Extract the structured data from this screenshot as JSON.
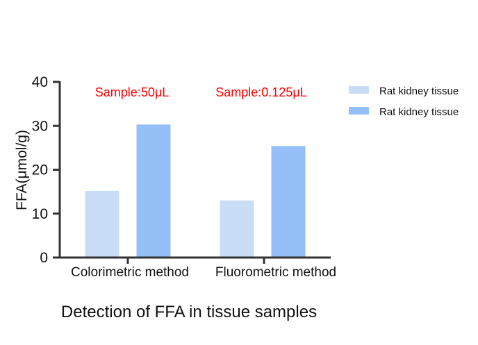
{
  "chart_data": {
    "type": "bar",
    "title": "Detection of FFA in tissue samples",
    "ylabel": "FFA(μmol/g)",
    "xlabel": "",
    "ylim": [
      0,
      40
    ],
    "yticks": [
      0,
      10,
      20,
      30,
      40
    ],
    "grid": false,
    "legend_position": "top-right",
    "categories": [
      {
        "label": "Colorimetric method",
        "color": "#111111"
      },
      {
        "label": "Fluorometric method",
        "color": "#ff0000"
      }
    ],
    "series": [
      {
        "name": "Rat kidney tissue",
        "color": "#c9ddf7",
        "values": [
          15.2,
          13.0
        ]
      },
      {
        "name": "Rat kidney tissue",
        "color": "#94bff7",
        "values": [
          30.3,
          25.4
        ]
      }
    ],
    "annotations": [
      {
        "text": "Sample:50μL",
        "category": 0,
        "color": "#ff0000"
      },
      {
        "text": "Sample:0.125μL",
        "category": 1,
        "color": "#ff0000"
      }
    ]
  }
}
